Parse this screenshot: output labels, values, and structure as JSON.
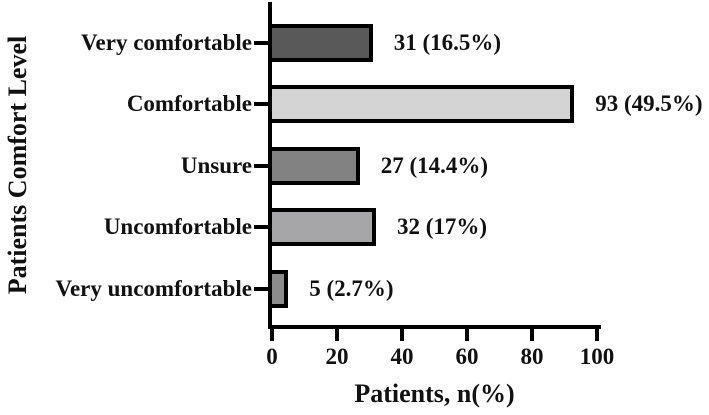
{
  "chart_data": {
    "type": "bar",
    "orientation": "horizontal",
    "title": "",
    "xlabel": "Patients, n(%)",
    "ylabel": "Patients Comfort Level",
    "xlim": [
      0,
      100
    ],
    "xticks": [
      0,
      20,
      40,
      60,
      80,
      100
    ],
    "grid": false,
    "legend": null,
    "categories": [
      "Very comfortable",
      "Comfortable",
      "Unsure",
      "Uncomfortable",
      "Very uncomfortable"
    ],
    "values": [
      31,
      93,
      27,
      32,
      5
    ],
    "percents": [
      16.5,
      49.5,
      14.4,
      17,
      2.7
    ],
    "value_labels": [
      "31 (16.5%)",
      "93 (49.5%)",
      "27 (14.4%)",
      "32 (17%)",
      "5 (2.7%)"
    ],
    "bar_colors": [
      "#595959",
      "#d4d4d4",
      "#828282",
      "#a6a6a9",
      "#8c8c8c"
    ],
    "bar_border_color": "#000000",
    "axis_color": "#000000",
    "text_color": "#111111",
    "background_color": "#ffffff"
  }
}
